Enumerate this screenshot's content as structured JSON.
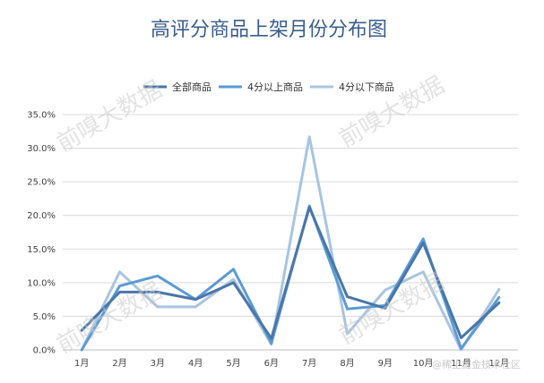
{
  "chart_data": {
    "type": "line",
    "title": "高评分商品上架月份分布图",
    "categories": [
      "1月",
      "2月",
      "3月",
      "4月",
      "5月",
      "6月",
      "7月",
      "8月",
      "9月",
      "10月",
      "11月",
      "12月"
    ],
    "series": [
      {
        "name": "全部商品",
        "color": "#4a76a8",
        "values": [
          2.9,
          8.6,
          8.6,
          7.5,
          10.0,
          1.7,
          21.2,
          7.9,
          6.2,
          15.9,
          1.8,
          7.0
        ]
      },
      {
        "name": "4分以上商品",
        "color": "#5b9bd5",
        "values": [
          0.0,
          9.5,
          11.0,
          7.5,
          12.0,
          1.0,
          21.4,
          6.1,
          6.6,
          16.5,
          0.2,
          7.8
        ]
      },
      {
        "name": "4分以下商品",
        "color": "#a9c4e2",
        "values": [
          0.0,
          11.6,
          6.4,
          6.4,
          10.5,
          0.8,
          31.7,
          2.4,
          8.9,
          11.6,
          0.0,
          9.0
        ]
      }
    ],
    "y_ticks": [
      "0.0%",
      "5.0%",
      "10.0%",
      "15.0%",
      "20.0%",
      "25.0%",
      "30.0%",
      "35.0%"
    ],
    "ylim": [
      0,
      35
    ],
    "grid": true,
    "legend_position": "top-center"
  },
  "watermark": "前嗅大数据",
  "footer_watermark": "@稀土掘金技术社区"
}
